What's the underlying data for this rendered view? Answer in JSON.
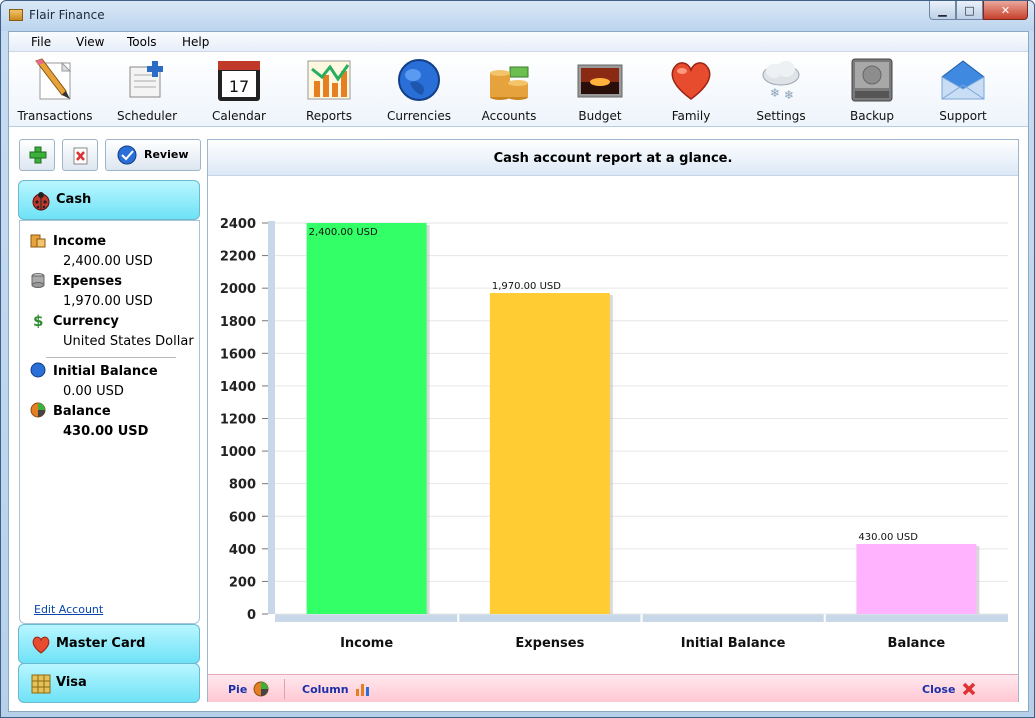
{
  "window": {
    "title": "Flair Finance"
  },
  "menu": [
    "File",
    "View",
    "Tools",
    "Help"
  ],
  "toolbar": [
    {
      "label": "Transactions",
      "icon": "pencil-icon"
    },
    {
      "label": "Scheduler",
      "icon": "scheduler-icon"
    },
    {
      "label": "Calendar",
      "icon": "calendar-icon",
      "day": "17"
    },
    {
      "label": "Reports",
      "icon": "chart-icon"
    },
    {
      "label": "Currencies",
      "icon": "globe-icon"
    },
    {
      "label": "Accounts",
      "icon": "coins-icon"
    },
    {
      "label": "Budget",
      "icon": "sunset-icon"
    },
    {
      "label": "Family",
      "icon": "heart-icon"
    },
    {
      "label": "Settings",
      "icon": "snow-cloud-icon"
    },
    {
      "label": "Backup",
      "icon": "hard-drive-icon"
    },
    {
      "label": "Support",
      "icon": "envelope-icon"
    }
  ],
  "left_panel": {
    "review_label": "Review",
    "accounts": [
      {
        "name": "Cash",
        "active": true
      },
      {
        "name": "Master Card",
        "active": false
      },
      {
        "name": "Visa",
        "active": false
      }
    ],
    "details": {
      "income_label": "Income",
      "income_value": "2,400.00 USD",
      "expenses_label": "Expenses",
      "expenses_value": "1,970.00 USD",
      "currency_label": "Currency",
      "currency_value": "United States Dollar",
      "initial_label": "Initial Balance",
      "initial_value": "0.00 USD",
      "balance_label": "Balance",
      "balance_value": "430.00 USD"
    },
    "edit_link": "Edit Account"
  },
  "report": {
    "title": "Cash account report at a glance.",
    "footer": {
      "pie": "Pie",
      "column": "Column",
      "close": "Close"
    }
  },
  "chart_data": {
    "type": "bar",
    "categories": [
      "Income",
      "Expenses",
      "Initial Balance",
      "Balance"
    ],
    "values": [
      2400,
      1970,
      0,
      430
    ],
    "data_labels": [
      "2,400.00 USD",
      "1,970.00 USD",
      "",
      "430.00 USD"
    ],
    "colors": [
      "#33ff66",
      "#ffcc33",
      "#cccccc",
      "#ffb3ff"
    ],
    "ylim": [
      0,
      2400
    ],
    "yticks": [
      0,
      200,
      400,
      600,
      800,
      1000,
      1200,
      1400,
      1600,
      1800,
      2000,
      2200,
      2400
    ],
    "grid": true,
    "title": "",
    "xlabel": "",
    "ylabel": ""
  }
}
